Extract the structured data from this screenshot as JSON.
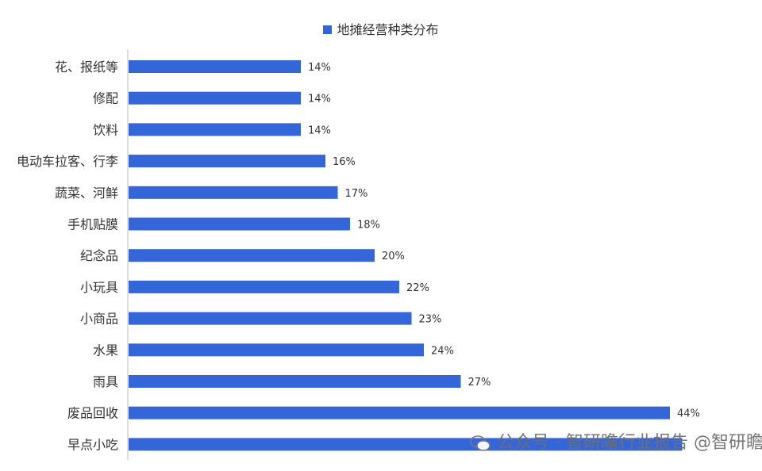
{
  "chart_data": {
    "type": "bar",
    "orientation": "horizontal",
    "categories": [
      "花、报纸等",
      "修配",
      "饮料",
      "电动车拉客、行李",
      "蔬菜、河鲜",
      "手机贴膜",
      "纪念品",
      "小玩具",
      "小商品",
      "水果",
      "雨具",
      "废品回收",
      "早点小吃"
    ],
    "series": [
      {
        "name": "地摊经营种类分布",
        "values": [
          14,
          14,
          14,
          16,
          17,
          18,
          20,
          22,
          23,
          24,
          27,
          44,
          45
        ],
        "labels": [
          "14%",
          "14%",
          "14%",
          "16%",
          "17%",
          "18%",
          "20%",
          "22%",
          "23%",
          "24%",
          "27%",
          "44%",
          ""
        ]
      }
    ],
    "xlim": [
      0,
      50
    ],
    "legend_position": "top",
    "grid": false,
    "bar_color": "#3566d9"
  },
  "watermark": {
    "text": "公众号 · 智研瞻行业报告  @智研瞻",
    "icon": "wechat-icon"
  }
}
